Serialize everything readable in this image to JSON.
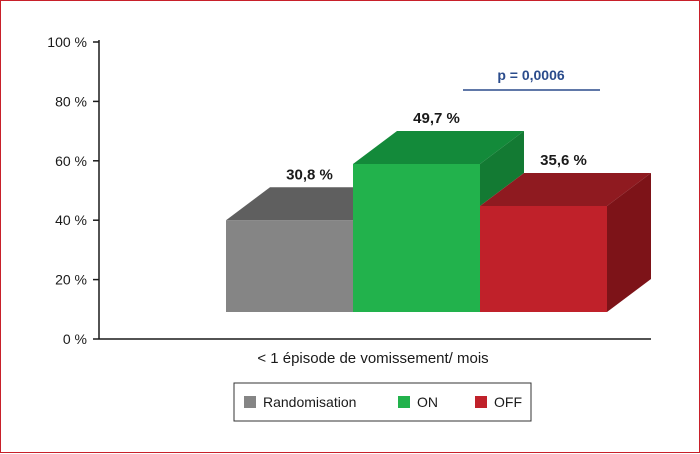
{
  "chart_data": {
    "type": "bar",
    "categories": [
      "< 1 épisode de vomissement/ mois"
    ],
    "series": [
      {
        "name": "Randomisation",
        "values": [
          30.8
        ],
        "label": "30,8 %",
        "color": "#858585",
        "top_color": "#5f5f5f",
        "side_color": "#5a5a5a"
      },
      {
        "name": "ON",
        "values": [
          49.7
        ],
        "label": "49,7 %",
        "color": "#22b24c",
        "top_color": "#138a3a",
        "side_color": "#137a33"
      },
      {
        "name": "OFF",
        "values": [
          35.6
        ],
        "label": "35,6 %",
        "color": "#c0212a",
        "top_color": "#8f1a20",
        "side_color": "#7d1318"
      }
    ],
    "yticks": [
      "0 %",
      "20 %",
      "40 %",
      "60 %",
      "80 %",
      "100 %"
    ],
    "ylim": [
      0,
      100
    ],
    "annotation": "p = 0,0006",
    "annotation_color": "#2b4c8c",
    "legend_position": "bottom"
  }
}
